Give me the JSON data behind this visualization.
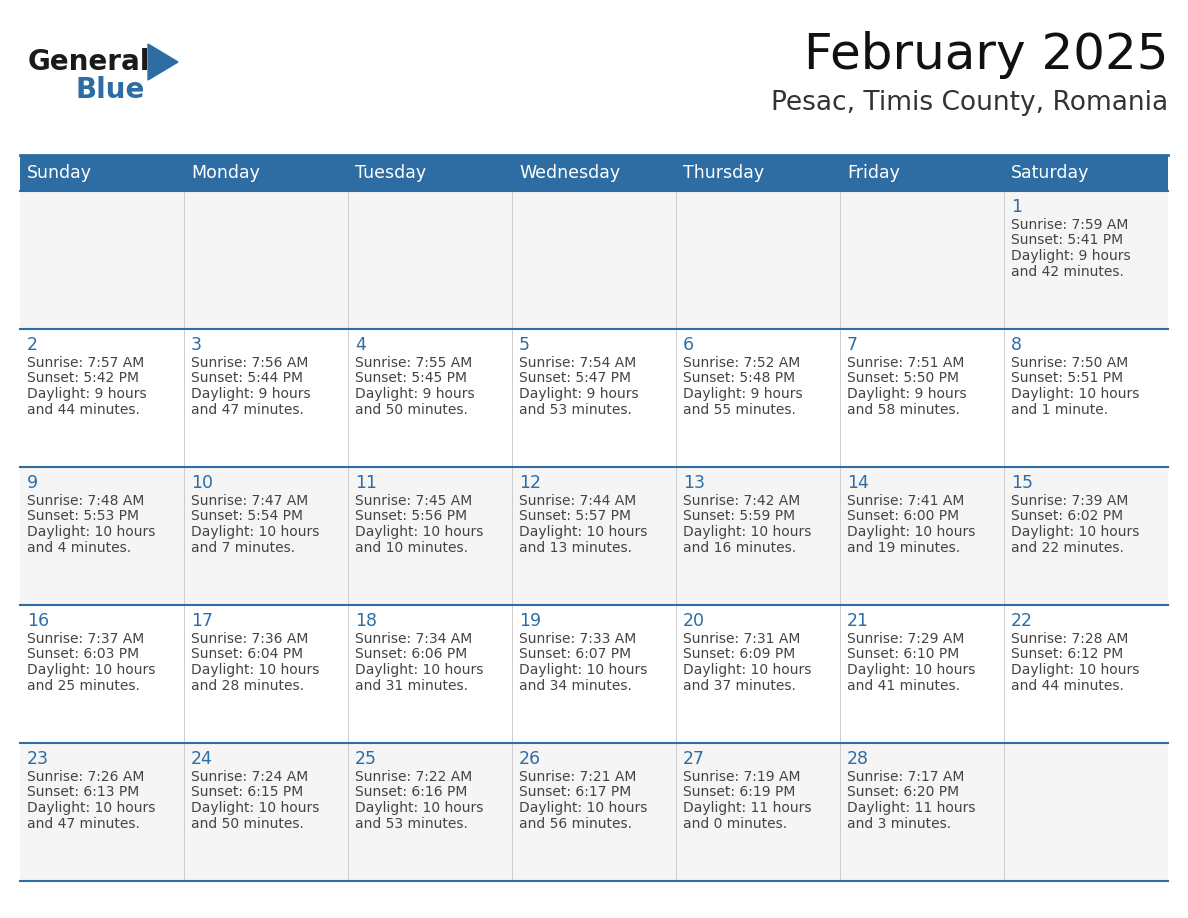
{
  "title": "February 2025",
  "subtitle": "Pesac, Timis County, Romania",
  "header_bg": "#2E6DA4",
  "header_text": "#FFFFFF",
  "cell_bg": "#F5F5F5",
  "day_color": "#2E6DA4",
  "text_color": "#444444",
  "line_color": "#2E6DA4",
  "weekdays": [
    "Sunday",
    "Monday",
    "Tuesday",
    "Wednesday",
    "Thursday",
    "Friday",
    "Saturday"
  ],
  "logo_color1": "#1a1a1a",
  "logo_color2": "#2E6DA4",
  "days": [
    {
      "day": 1,
      "col": 6,
      "row": 0,
      "sunrise": "7:59 AM",
      "sunset": "5:41 PM",
      "dl1": "Daylight: 9 hours",
      "dl2": "and 42 minutes."
    },
    {
      "day": 2,
      "col": 0,
      "row": 1,
      "sunrise": "7:57 AM",
      "sunset": "5:42 PM",
      "dl1": "Daylight: 9 hours",
      "dl2": "and 44 minutes."
    },
    {
      "day": 3,
      "col": 1,
      "row": 1,
      "sunrise": "7:56 AM",
      "sunset": "5:44 PM",
      "dl1": "Daylight: 9 hours",
      "dl2": "and 47 minutes."
    },
    {
      "day": 4,
      "col": 2,
      "row": 1,
      "sunrise": "7:55 AM",
      "sunset": "5:45 PM",
      "dl1": "Daylight: 9 hours",
      "dl2": "and 50 minutes."
    },
    {
      "day": 5,
      "col": 3,
      "row": 1,
      "sunrise": "7:54 AM",
      "sunset": "5:47 PM",
      "dl1": "Daylight: 9 hours",
      "dl2": "and 53 minutes."
    },
    {
      "day": 6,
      "col": 4,
      "row": 1,
      "sunrise": "7:52 AM",
      "sunset": "5:48 PM",
      "dl1": "Daylight: 9 hours",
      "dl2": "and 55 minutes."
    },
    {
      "day": 7,
      "col": 5,
      "row": 1,
      "sunrise": "7:51 AM",
      "sunset": "5:50 PM",
      "dl1": "Daylight: 9 hours",
      "dl2": "and 58 minutes."
    },
    {
      "day": 8,
      "col": 6,
      "row": 1,
      "sunrise": "7:50 AM",
      "sunset": "5:51 PM",
      "dl1": "Daylight: 10 hours",
      "dl2": "and 1 minute."
    },
    {
      "day": 9,
      "col": 0,
      "row": 2,
      "sunrise": "7:48 AM",
      "sunset": "5:53 PM",
      "dl1": "Daylight: 10 hours",
      "dl2": "and 4 minutes."
    },
    {
      "day": 10,
      "col": 1,
      "row": 2,
      "sunrise": "7:47 AM",
      "sunset": "5:54 PM",
      "dl1": "Daylight: 10 hours",
      "dl2": "and 7 minutes."
    },
    {
      "day": 11,
      "col": 2,
      "row": 2,
      "sunrise": "7:45 AM",
      "sunset": "5:56 PM",
      "dl1": "Daylight: 10 hours",
      "dl2": "and 10 minutes."
    },
    {
      "day": 12,
      "col": 3,
      "row": 2,
      "sunrise": "7:44 AM",
      "sunset": "5:57 PM",
      "dl1": "Daylight: 10 hours",
      "dl2": "and 13 minutes."
    },
    {
      "day": 13,
      "col": 4,
      "row": 2,
      "sunrise": "7:42 AM",
      "sunset": "5:59 PM",
      "dl1": "Daylight: 10 hours",
      "dl2": "and 16 minutes."
    },
    {
      "day": 14,
      "col": 5,
      "row": 2,
      "sunrise": "7:41 AM",
      "sunset": "6:00 PM",
      "dl1": "Daylight: 10 hours",
      "dl2": "and 19 minutes."
    },
    {
      "day": 15,
      "col": 6,
      "row": 2,
      "sunrise": "7:39 AM",
      "sunset": "6:02 PM",
      "dl1": "Daylight: 10 hours",
      "dl2": "and 22 minutes."
    },
    {
      "day": 16,
      "col": 0,
      "row": 3,
      "sunrise": "7:37 AM",
      "sunset": "6:03 PM",
      "dl1": "Daylight: 10 hours",
      "dl2": "and 25 minutes."
    },
    {
      "day": 17,
      "col": 1,
      "row": 3,
      "sunrise": "7:36 AM",
      "sunset": "6:04 PM",
      "dl1": "Daylight: 10 hours",
      "dl2": "and 28 minutes."
    },
    {
      "day": 18,
      "col": 2,
      "row": 3,
      "sunrise": "7:34 AM",
      "sunset": "6:06 PM",
      "dl1": "Daylight: 10 hours",
      "dl2": "and 31 minutes."
    },
    {
      "day": 19,
      "col": 3,
      "row": 3,
      "sunrise": "7:33 AM",
      "sunset": "6:07 PM",
      "dl1": "Daylight: 10 hours",
      "dl2": "and 34 minutes."
    },
    {
      "day": 20,
      "col": 4,
      "row": 3,
      "sunrise": "7:31 AM",
      "sunset": "6:09 PM",
      "dl1": "Daylight: 10 hours",
      "dl2": "and 37 minutes."
    },
    {
      "day": 21,
      "col": 5,
      "row": 3,
      "sunrise": "7:29 AM",
      "sunset": "6:10 PM",
      "dl1": "Daylight: 10 hours",
      "dl2": "and 41 minutes."
    },
    {
      "day": 22,
      "col": 6,
      "row": 3,
      "sunrise": "7:28 AM",
      "sunset": "6:12 PM",
      "dl1": "Daylight: 10 hours",
      "dl2": "and 44 minutes."
    },
    {
      "day": 23,
      "col": 0,
      "row": 4,
      "sunrise": "7:26 AM",
      "sunset": "6:13 PM",
      "dl1": "Daylight: 10 hours",
      "dl2": "and 47 minutes."
    },
    {
      "day": 24,
      "col": 1,
      "row": 4,
      "sunrise": "7:24 AM",
      "sunset": "6:15 PM",
      "dl1": "Daylight: 10 hours",
      "dl2": "and 50 minutes."
    },
    {
      "day": 25,
      "col": 2,
      "row": 4,
      "sunrise": "7:22 AM",
      "sunset": "6:16 PM",
      "dl1": "Daylight: 10 hours",
      "dl2": "and 53 minutes."
    },
    {
      "day": 26,
      "col": 3,
      "row": 4,
      "sunrise": "7:21 AM",
      "sunset": "6:17 PM",
      "dl1": "Daylight: 10 hours",
      "dl2": "and 56 minutes."
    },
    {
      "day": 27,
      "col": 4,
      "row": 4,
      "sunrise": "7:19 AM",
      "sunset": "6:19 PM",
      "dl1": "Daylight: 11 hours",
      "dl2": "and 0 minutes."
    },
    {
      "day": 28,
      "col": 5,
      "row": 4,
      "sunrise": "7:17 AM",
      "sunset": "6:20 PM",
      "dl1": "Daylight: 11 hours",
      "dl2": "and 3 minutes."
    }
  ]
}
